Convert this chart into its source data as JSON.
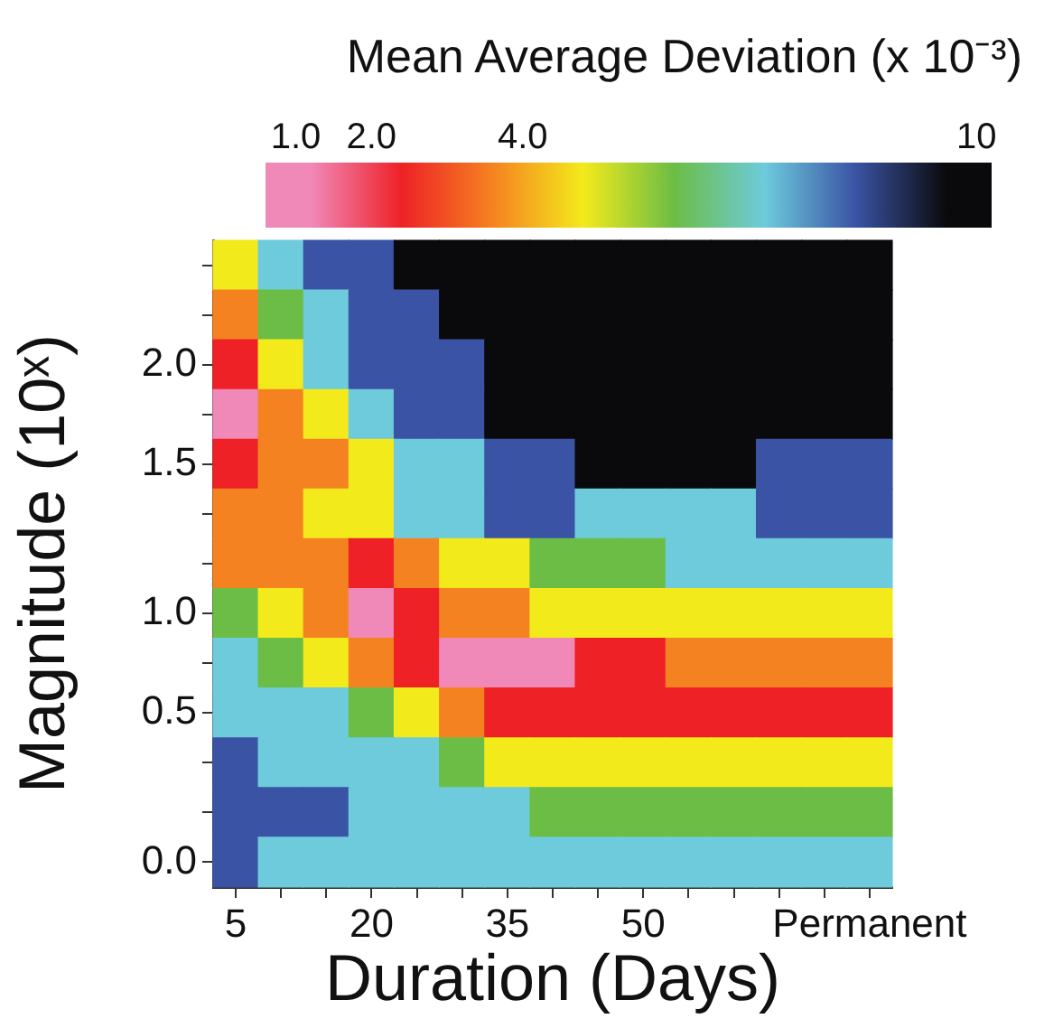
{
  "chart_data": {
    "type": "heatmap",
    "title": "Mean Average Deviation (x 10⁻³)",
    "xlabel": "Duration (Days)",
    "ylabel": "Magnitude (10ˣ)",
    "categories": [
      "5",
      null,
      null,
      "20",
      null,
      null,
      "35",
      null,
      null,
      "50",
      null,
      null,
      null,
      null,
      "Permanent"
    ],
    "y_categories": [
      null,
      null,
      "2.0",
      null,
      "1.5",
      null,
      null,
      "1.0",
      null,
      "0.5",
      null,
      null,
      "0.0"
    ],
    "clim": [
      0.6,
      10.2
    ],
    "cticks": [
      {
        "value": 1,
        "label": "1.0"
      },
      {
        "value": 2,
        "label": "2.0"
      },
      {
        "value": 4,
        "label": "4.0"
      },
      10
    ],
    "cells": [
      [
        4.8,
        7.2,
        8.4,
        8.4,
        9.6,
        9.6,
        9.6,
        9.6,
        9.6,
        9.6,
        9.6,
        9.6,
        9.6,
        9.6,
        9.6
      ],
      [
        3.6,
        6.0,
        7.2,
        8.4,
        8.4,
        9.6,
        9.6,
        9.6,
        9.6,
        9.6,
        9.6,
        9.6,
        9.6,
        9.6,
        9.6
      ],
      [
        2.4,
        4.8,
        7.2,
        8.4,
        8.4,
        8.4,
        9.6,
        9.6,
        9.6,
        9.6,
        9.6,
        9.6,
        9.6,
        9.6,
        9.6
      ],
      [
        1.2,
        3.6,
        4.8,
        7.2,
        8.4,
        8.4,
        9.6,
        9.6,
        9.6,
        9.6,
        9.6,
        9.6,
        9.6,
        9.6,
        9.6
      ],
      [
        2.4,
        3.6,
        3.6,
        4.8,
        7.2,
        7.2,
        8.4,
        8.4,
        9.6,
        9.6,
        9.6,
        9.6,
        8.4,
        8.4,
        8.4
      ],
      [
        3.6,
        3.6,
        4.8,
        4.8,
        7.2,
        7.2,
        8.4,
        8.4,
        7.2,
        7.2,
        7.2,
        7.2,
        8.4,
        8.4,
        8.4
      ],
      [
        3.6,
        3.6,
        3.6,
        2.4,
        3.6,
        4.8,
        4.8,
        6.0,
        6.0,
        6.0,
        7.2,
        7.2,
        7.2,
        7.2,
        7.2
      ],
      [
        6.0,
        4.8,
        3.6,
        1.2,
        2.4,
        3.6,
        3.6,
        4.8,
        4.8,
        4.8,
        4.8,
        4.8,
        4.8,
        4.8,
        4.8
      ],
      [
        7.2,
        6.0,
        4.8,
        3.6,
        2.4,
        1.2,
        1.2,
        1.2,
        2.4,
        2.4,
        3.6,
        3.6,
        3.6,
        3.6,
        3.6
      ],
      [
        7.2,
        7.2,
        7.2,
        6.0,
        4.8,
        3.6,
        2.4,
        2.4,
        2.4,
        2.4,
        2.4,
        2.4,
        2.4,
        2.4,
        2.4
      ],
      [
        8.4,
        7.2,
        7.2,
        7.2,
        7.2,
        6.0,
        4.8,
        4.8,
        4.8,
        4.8,
        4.8,
        4.8,
        4.8,
        4.8,
        4.8
      ],
      [
        8.4,
        8.4,
        8.4,
        7.2,
        7.2,
        7.2,
        7.2,
        6.0,
        6.0,
        6.0,
        6.0,
        6.0,
        6.0,
        6.0,
        6.0
      ],
      [
        8.4,
        7.2,
        7.2,
        7.2,
        7.2,
        7.2,
        7.2,
        7.2,
        7.2,
        7.2,
        7.2,
        7.2,
        7.2,
        7.2,
        7.2
      ]
    ]
  }
}
